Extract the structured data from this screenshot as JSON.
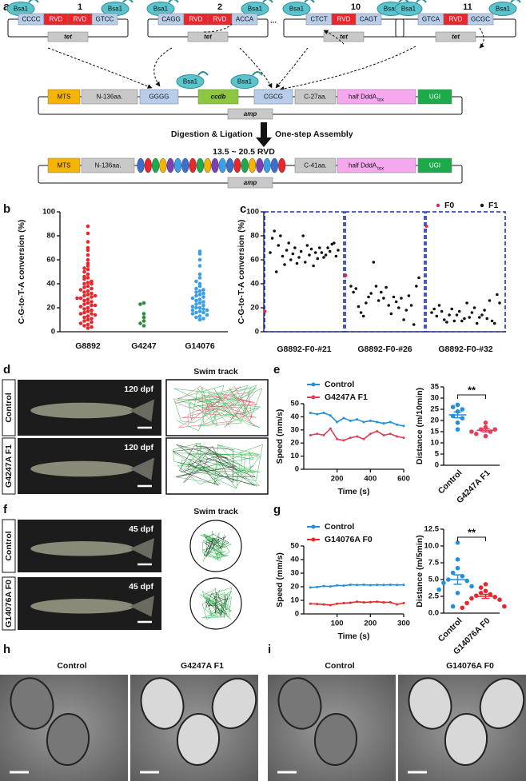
{
  "panel_labels": [
    "a",
    "b",
    "c",
    "d",
    "e",
    "f",
    "g",
    "h",
    "i"
  ],
  "diagram": {
    "enzyme": "Bsa1",
    "marker_top": "tet",
    "ellipsis": "...",
    "plasmids": [
      {
        "number": "1",
        "left": "CCCC",
        "rvds": [
          "RVD",
          "RVD"
        ],
        "right": "GTCC"
      },
      {
        "number": "2",
        "left": "CAGG",
        "rvds": [
          "RVD",
          "RVD"
        ],
        "right": "ACCA"
      },
      {
        "number": "10",
        "left": "CTCT",
        "rvds": [
          "RVD"
        ],
        "right": "CAGT"
      },
      {
        "number": "11",
        "left": "GTCA",
        "rvds": [
          "RVD"
        ],
        "right": "GCGC"
      }
    ],
    "backbone": {
      "parts": [
        "MTS",
        "N-136aa.",
        "GGGG",
        "ccdb",
        "CGCG",
        "C-27aa."
      ],
      "half": "half DddA",
      "sub": "tox",
      "ugi": "UGI",
      "marker": "amp"
    },
    "step_left": "Digestion & Ligation",
    "step_right": "One-step Assembly",
    "range": "13.5 ~ 20.5 RVD",
    "product": {
      "parts": [
        "MTS",
        "N-136aa.",
        "C-41aa."
      ],
      "half": "half DddA",
      "sub": "tox",
      "ugi": "UGI",
      "marker": "amp"
    }
  },
  "photos": {
    "d": {
      "stage": "120 dpf",
      "rows": [
        "Control",
        "G4247A  F1"
      ],
      "track": "Swim track"
    },
    "f": {
      "stage": "45 dpf",
      "rows": [
        "Control",
        "G14076A  F0"
      ],
      "track": "Swim track"
    },
    "h": {
      "left": "Control",
      "right": "G4247A  F1"
    },
    "i": {
      "left": "Control",
      "right": "G14076A  F0"
    }
  },
  "chart_data": [
    {
      "type": "strip",
      "ylabel": "C-G-to-T-A conversion (%)",
      "ylim": [
        0,
        100
      ],
      "yticks": [
        0,
        20,
        40,
        60,
        80,
        100
      ],
      "categories": [
        "G8892",
        "G4247",
        "G14076"
      ],
      "colors": [
        "#e8262b",
        "#2e8b3a",
        "#3a9ee8"
      ],
      "values": [
        [
          88,
          82,
          75,
          70,
          68,
          64,
          60,
          57,
          55,
          53,
          52,
          50,
          48,
          46,
          45,
          44,
          42,
          41,
          40,
          38,
          37,
          36,
          35,
          34,
          33,
          32,
          31,
          30,
          29,
          28,
          27,
          26,
          25,
          24,
          23,
          22,
          21,
          20,
          19,
          18,
          17,
          16,
          15,
          15,
          14,
          13,
          12,
          11,
          10,
          9,
          8,
          7,
          6,
          5,
          4,
          3,
          22,
          30,
          40,
          28
        ],
        [
          24,
          23,
          15,
          12,
          9,
          7,
          5
        ],
        [
          67,
          65,
          60,
          55,
          48,
          45,
          42,
          40,
          38,
          36,
          35,
          34,
          33,
          32,
          31,
          30,
          29,
          28,
          27,
          26,
          25,
          24,
          23,
          22,
          21,
          20,
          20,
          19,
          18,
          18,
          17,
          16,
          16,
          15,
          14,
          13,
          12,
          11,
          10
        ]
      ]
    },
    {
      "type": "scatter_groups",
      "ylabel": "C-G-to-T-A conversion (%)",
      "ylim": [
        0,
        100
      ],
      "yticks": [
        0,
        20,
        40,
        60,
        80,
        100
      ],
      "categories": [
        "G8892-F0-#21",
        "G8892-F0-#26",
        "G8892-F0-#32"
      ],
      "series": [
        {
          "name": "F0",
          "color": "#e8264a",
          "values": [
            17,
            47,
            88
          ]
        },
        {
          "name": "F1",
          "color": "#111111",
          "values": [
            [
              66,
              78,
              84,
              50,
              72,
              80,
              63,
              56,
              68,
              74,
              60,
              65,
              70,
              57,
              62,
              67,
              80,
              58,
              72,
              64,
              69,
              55,
              66,
              61,
              70,
              66,
              62,
              64,
              70,
              67,
              73,
              74,
              63,
              68
            ],
            [
              38,
              33,
              36,
              21,
              16,
              13,
              24,
              29,
              32,
              58,
              38,
              26,
              33,
              28,
              37,
              22,
              15,
              29,
              25,
              20,
              28,
              10,
              18,
              30,
              22,
              6,
              38,
              45
            ],
            [
              16,
              19,
              13,
              22,
              17,
              10,
              8,
              14,
              19,
              9,
              14,
              17,
              9,
              11,
              24,
              12,
              16,
              20,
              7,
              12,
              14,
              18,
              11,
              26,
              9,
              7,
              31,
              24
            ]
          ]
        }
      ]
    },
    {
      "type": "line",
      "xlabel": "Time (s)",
      "ylabel": "Speed (mm/s)",
      "xlim": [
        0,
        600
      ],
      "xticks": [
        200,
        400,
        600
      ],
      "ylim": [
        0,
        50
      ],
      "yticks": [
        0,
        10,
        20,
        30,
        40,
        50
      ],
      "x": [
        40,
        80,
        120,
        160,
        200,
        240,
        280,
        320,
        360,
        400,
        440,
        480,
        520,
        560,
        600
      ],
      "series": [
        {
          "name": "Control",
          "color": "#1e8fe1",
          "values": [
            43,
            42,
            43,
            41,
            36,
            39,
            37,
            38,
            36,
            37,
            36,
            35,
            36,
            34,
            33
          ]
        },
        {
          "name": "G4247A F1",
          "color": "#e0405a",
          "values": [
            26,
            27,
            26,
            31,
            23,
            22,
            24,
            25,
            23,
            27,
            29,
            26,
            27,
            25,
            24
          ]
        }
      ]
    },
    {
      "type": "dot",
      "ylabel": "Distance (m/10min)",
      "ylim": [
        0,
        35
      ],
      "yticks": [
        0,
        5,
        10,
        15,
        20,
        25,
        30,
        35
      ],
      "categories": [
        "Control",
        "G4247A F1"
      ],
      "colors": [
        "#1e8fe1",
        "#e0405a"
      ],
      "values": [
        [
          27,
          26,
          24,
          22,
          21,
          19,
          16,
          25
        ],
        [
          19,
          17,
          16,
          15,
          14,
          16,
          13,
          15
        ]
      ],
      "means": [
        22.5,
        15.6
      ],
      "errors": [
        1.3,
        0.7
      ],
      "annotation": "**"
    },
    {
      "type": "line",
      "xlabel": "Time (s)",
      "ylabel": "Speed (mm/s)",
      "xlim": [
        0,
        300
      ],
      "xticks": [
        100,
        200,
        300
      ],
      "ylim": [
        0,
        50
      ],
      "yticks": [
        0,
        10,
        20,
        30,
        40,
        50
      ],
      "x": [
        20,
        40,
        60,
        80,
        100,
        120,
        140,
        160,
        180,
        200,
        220,
        240,
        260,
        280,
        300
      ],
      "series": [
        {
          "name": "Control",
          "color": "#1e8fe1",
          "values": [
            19.5,
            19.8,
            20.5,
            20.2,
            21,
            20.8,
            21.5,
            21.3,
            21.5,
            21.2,
            21.4,
            21.3,
            21.5,
            21.3,
            21.4
          ]
        },
        {
          "name": "G14076A F0",
          "color": "#e8262b",
          "values": [
            7.5,
            7.3,
            7,
            6.5,
            7.5,
            8,
            8.2,
            9,
            8.5,
            8.7,
            9,
            8.5,
            8.6,
            7,
            8
          ]
        }
      ]
    },
    {
      "type": "dot",
      "ylabel": "Distance (m/5min)",
      "ylim": [
        0,
        12.5
      ],
      "yticks": [
        {
          "value": 0,
          "label": "0.0"
        },
        2.5,
        {
          "value": 5,
          "label": "5.0"
        },
        7.5,
        {
          "value": 10,
          "label": "10.0"
        },
        12.5
      ],
      "categories": [
        "Control",
        "G14076A F0"
      ],
      "colors": [
        "#1e8fe1",
        "#e8262b"
      ],
      "values": [
        [
          10.5,
          8,
          6.7,
          6,
          5.5,
          5,
          4.8,
          4.5,
          4,
          3.5,
          3,
          1
        ],
        [
          4.3,
          3.8,
          3.3,
          3,
          2.8,
          2.6,
          2.4,
          2.2,
          2,
          1.5,
          1,
          0.8
        ]
      ],
      "means": [
        5,
        2.5
      ],
      "errors": [
        0.7,
        0.3
      ],
      "annotation": "**"
    }
  ]
}
